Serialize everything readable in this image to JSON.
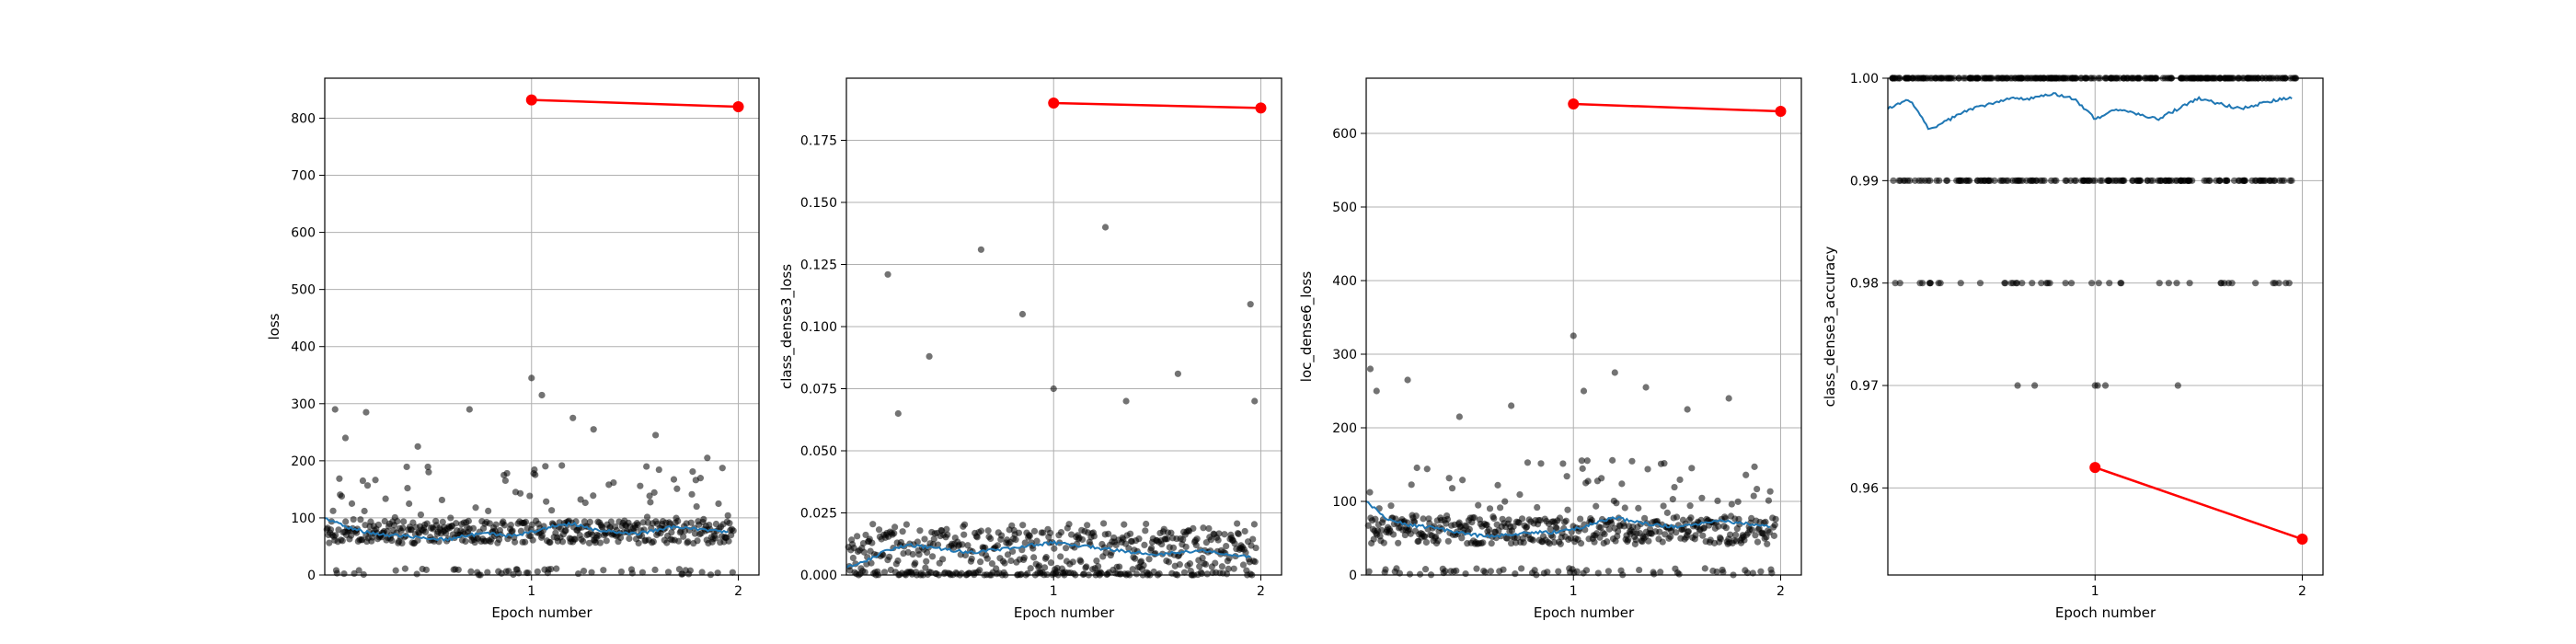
{
  "chart_data": [
    {
      "type": "scatter",
      "xlabel": "Epoch number",
      "ylabel": "loss",
      "xlim": [
        0.0,
        2.1
      ],
      "ylim": [
        0,
        870
      ],
      "xticks": [
        "1",
        "2"
      ],
      "yticks": [
        "0",
        "100",
        "200",
        "300",
        "400",
        "500",
        "600",
        "700",
        "800"
      ],
      "grid": true,
      "batch_points": {
        "baseline": 75,
        "spread": 20,
        "outliers": [
          [
            0.05,
            290
          ],
          [
            0.1,
            240
          ],
          [
            0.2,
            285
          ],
          [
            0.45,
            225
          ],
          [
            0.7,
            290
          ],
          [
            1.0,
            345
          ],
          [
            1.05,
            315
          ],
          [
            1.2,
            275
          ],
          [
            1.3,
            255
          ],
          [
            1.6,
            245
          ],
          [
            1.85,
            205
          ]
        ]
      },
      "smoothed_series": {
        "color": "#1f77b4",
        "x": [
          0.0,
          0.1,
          0.2,
          0.3,
          0.4,
          0.5,
          0.6,
          0.7,
          0.8,
          0.9,
          1.0,
          1.1,
          1.2,
          1.3,
          1.4,
          1.5,
          1.6,
          1.7,
          1.8,
          1.9,
          1.95
        ],
        "y": [
          100,
          85,
          75,
          70,
          68,
          65,
          62,
          70,
          72,
          68,
          75,
          85,
          90,
          80,
          75,
          72,
          78,
          85,
          80,
          78,
          75
        ]
      },
      "epoch_series": {
        "color": "#ff0000",
        "x": [
          1,
          2
        ],
        "y": [
          832,
          820
        ]
      }
    },
    {
      "type": "scatter",
      "xlabel": "Epoch number",
      "ylabel": "class_dense3_loss",
      "xlim": [
        0.0,
        2.1
      ],
      "ylim": [
        0,
        0.2
      ],
      "xticks": [
        "1",
        "2"
      ],
      "yticks": [
        "0.000",
        "0.025",
        "0.050",
        "0.075",
        "0.100",
        "0.125",
        "0.150",
        "0.175"
      ],
      "grid": true,
      "batch_points": {
        "baseline": 0.008,
        "spread": 0.01,
        "outliers": [
          [
            0.2,
            0.121
          ],
          [
            0.25,
            0.065
          ],
          [
            0.4,
            0.088
          ],
          [
            0.65,
            0.131
          ],
          [
            0.85,
            0.105
          ],
          [
            1.0,
            0.075
          ],
          [
            1.25,
            0.14
          ],
          [
            1.35,
            0.07
          ],
          [
            1.6,
            0.081
          ],
          [
            1.95,
            0.109
          ],
          [
            1.97,
            0.07
          ]
        ]
      },
      "smoothed_series": {
        "color": "#1f77b4",
        "x": [
          0.0,
          0.1,
          0.2,
          0.3,
          0.4,
          0.5,
          0.6,
          0.7,
          0.8,
          0.9,
          1.0,
          1.1,
          1.2,
          1.3,
          1.4,
          1.5,
          1.6,
          1.7,
          1.8,
          1.9,
          1.95
        ],
        "y": [
          0.003,
          0.006,
          0.01,
          0.012,
          0.011,
          0.01,
          0.009,
          0.01,
          0.011,
          0.012,
          0.013,
          0.012,
          0.011,
          0.01,
          0.009,
          0.008,
          0.009,
          0.01,
          0.009,
          0.008,
          0.007
        ]
      },
      "epoch_series": {
        "color": "#ff0000",
        "x": [
          1,
          2
        ],
        "y": [
          0.19,
          0.188
        ]
      }
    },
    {
      "type": "scatter",
      "xlabel": "Epoch number",
      "ylabel": "loc_dense6_loss",
      "xlim": [
        0.0,
        2.1
      ],
      "ylim": [
        0,
        675
      ],
      "xticks": [
        "1",
        "2"
      ],
      "yticks": [
        "0",
        "100",
        "200",
        "300",
        "400",
        "500",
        "600"
      ],
      "grid": true,
      "batch_points": {
        "baseline": 60,
        "spread": 18,
        "outliers": [
          [
            0.02,
            280
          ],
          [
            0.05,
            250
          ],
          [
            0.2,
            265
          ],
          [
            0.45,
            215
          ],
          [
            0.7,
            230
          ],
          [
            1.0,
            325
          ],
          [
            1.05,
            250
          ],
          [
            1.2,
            275
          ],
          [
            1.35,
            255
          ],
          [
            1.55,
            225
          ],
          [
            1.75,
            240
          ]
        ]
      },
      "smoothed_series": {
        "color": "#1f77b4",
        "x": [
          0.0,
          0.1,
          0.2,
          0.3,
          0.4,
          0.5,
          0.6,
          0.7,
          0.8,
          0.9,
          1.0,
          1.1,
          1.2,
          1.3,
          1.4,
          1.5,
          1.6,
          1.7,
          1.8,
          1.9,
          1.95
        ],
        "y": [
          100,
          75,
          68,
          65,
          60,
          55,
          52,
          55,
          58,
          58,
          62,
          70,
          78,
          72,
          68,
          65,
          70,
          75,
          70,
          68,
          65
        ]
      },
      "epoch_series": {
        "color": "#ff0000",
        "x": [
          1,
          2
        ],
        "y": [
          640,
          630
        ]
      }
    },
    {
      "type": "scatter",
      "xlabel": "Epoch number",
      "ylabel": "class_dense3_accuracy",
      "xlim": [
        0.0,
        2.1
      ],
      "ylim": [
        0.9515,
        1.0
      ],
      "xticks": [
        "1",
        "2"
      ],
      "yticks": [
        "0.96",
        "0.97",
        "0.98",
        "0.99",
        "1.00"
      ],
      "grid": true,
      "batch_points": {
        "levels": [
          1.0,
          0.99,
          0.98,
          0.97
        ],
        "level_counts": [
          300,
          170,
          45,
          3
        ],
        "outliers": [
          [
            1.0,
            0.97
          ],
          [
            1.05,
            0.97
          ],
          [
            1.4,
            0.97
          ]
        ]
      },
      "smoothed_series": {
        "color": "#1f77b4",
        "x": [
          0.0,
          0.1,
          0.2,
          0.3,
          0.4,
          0.5,
          0.6,
          0.7,
          0.8,
          0.9,
          1.0,
          1.1,
          1.2,
          1.3,
          1.4,
          1.5,
          1.6,
          1.7,
          1.8,
          1.9,
          1.95
        ],
        "y": [
          0.997,
          0.998,
          0.995,
          0.996,
          0.997,
          0.9975,
          0.998,
          0.998,
          0.9985,
          0.998,
          0.996,
          0.997,
          0.9965,
          0.996,
          0.997,
          0.998,
          0.9975,
          0.997,
          0.9975,
          0.998,
          0.998
        ]
      },
      "epoch_series": {
        "color": "#ff0000",
        "x": [
          1,
          2
        ],
        "y": [
          0.962,
          0.955
        ]
      }
    }
  ]
}
